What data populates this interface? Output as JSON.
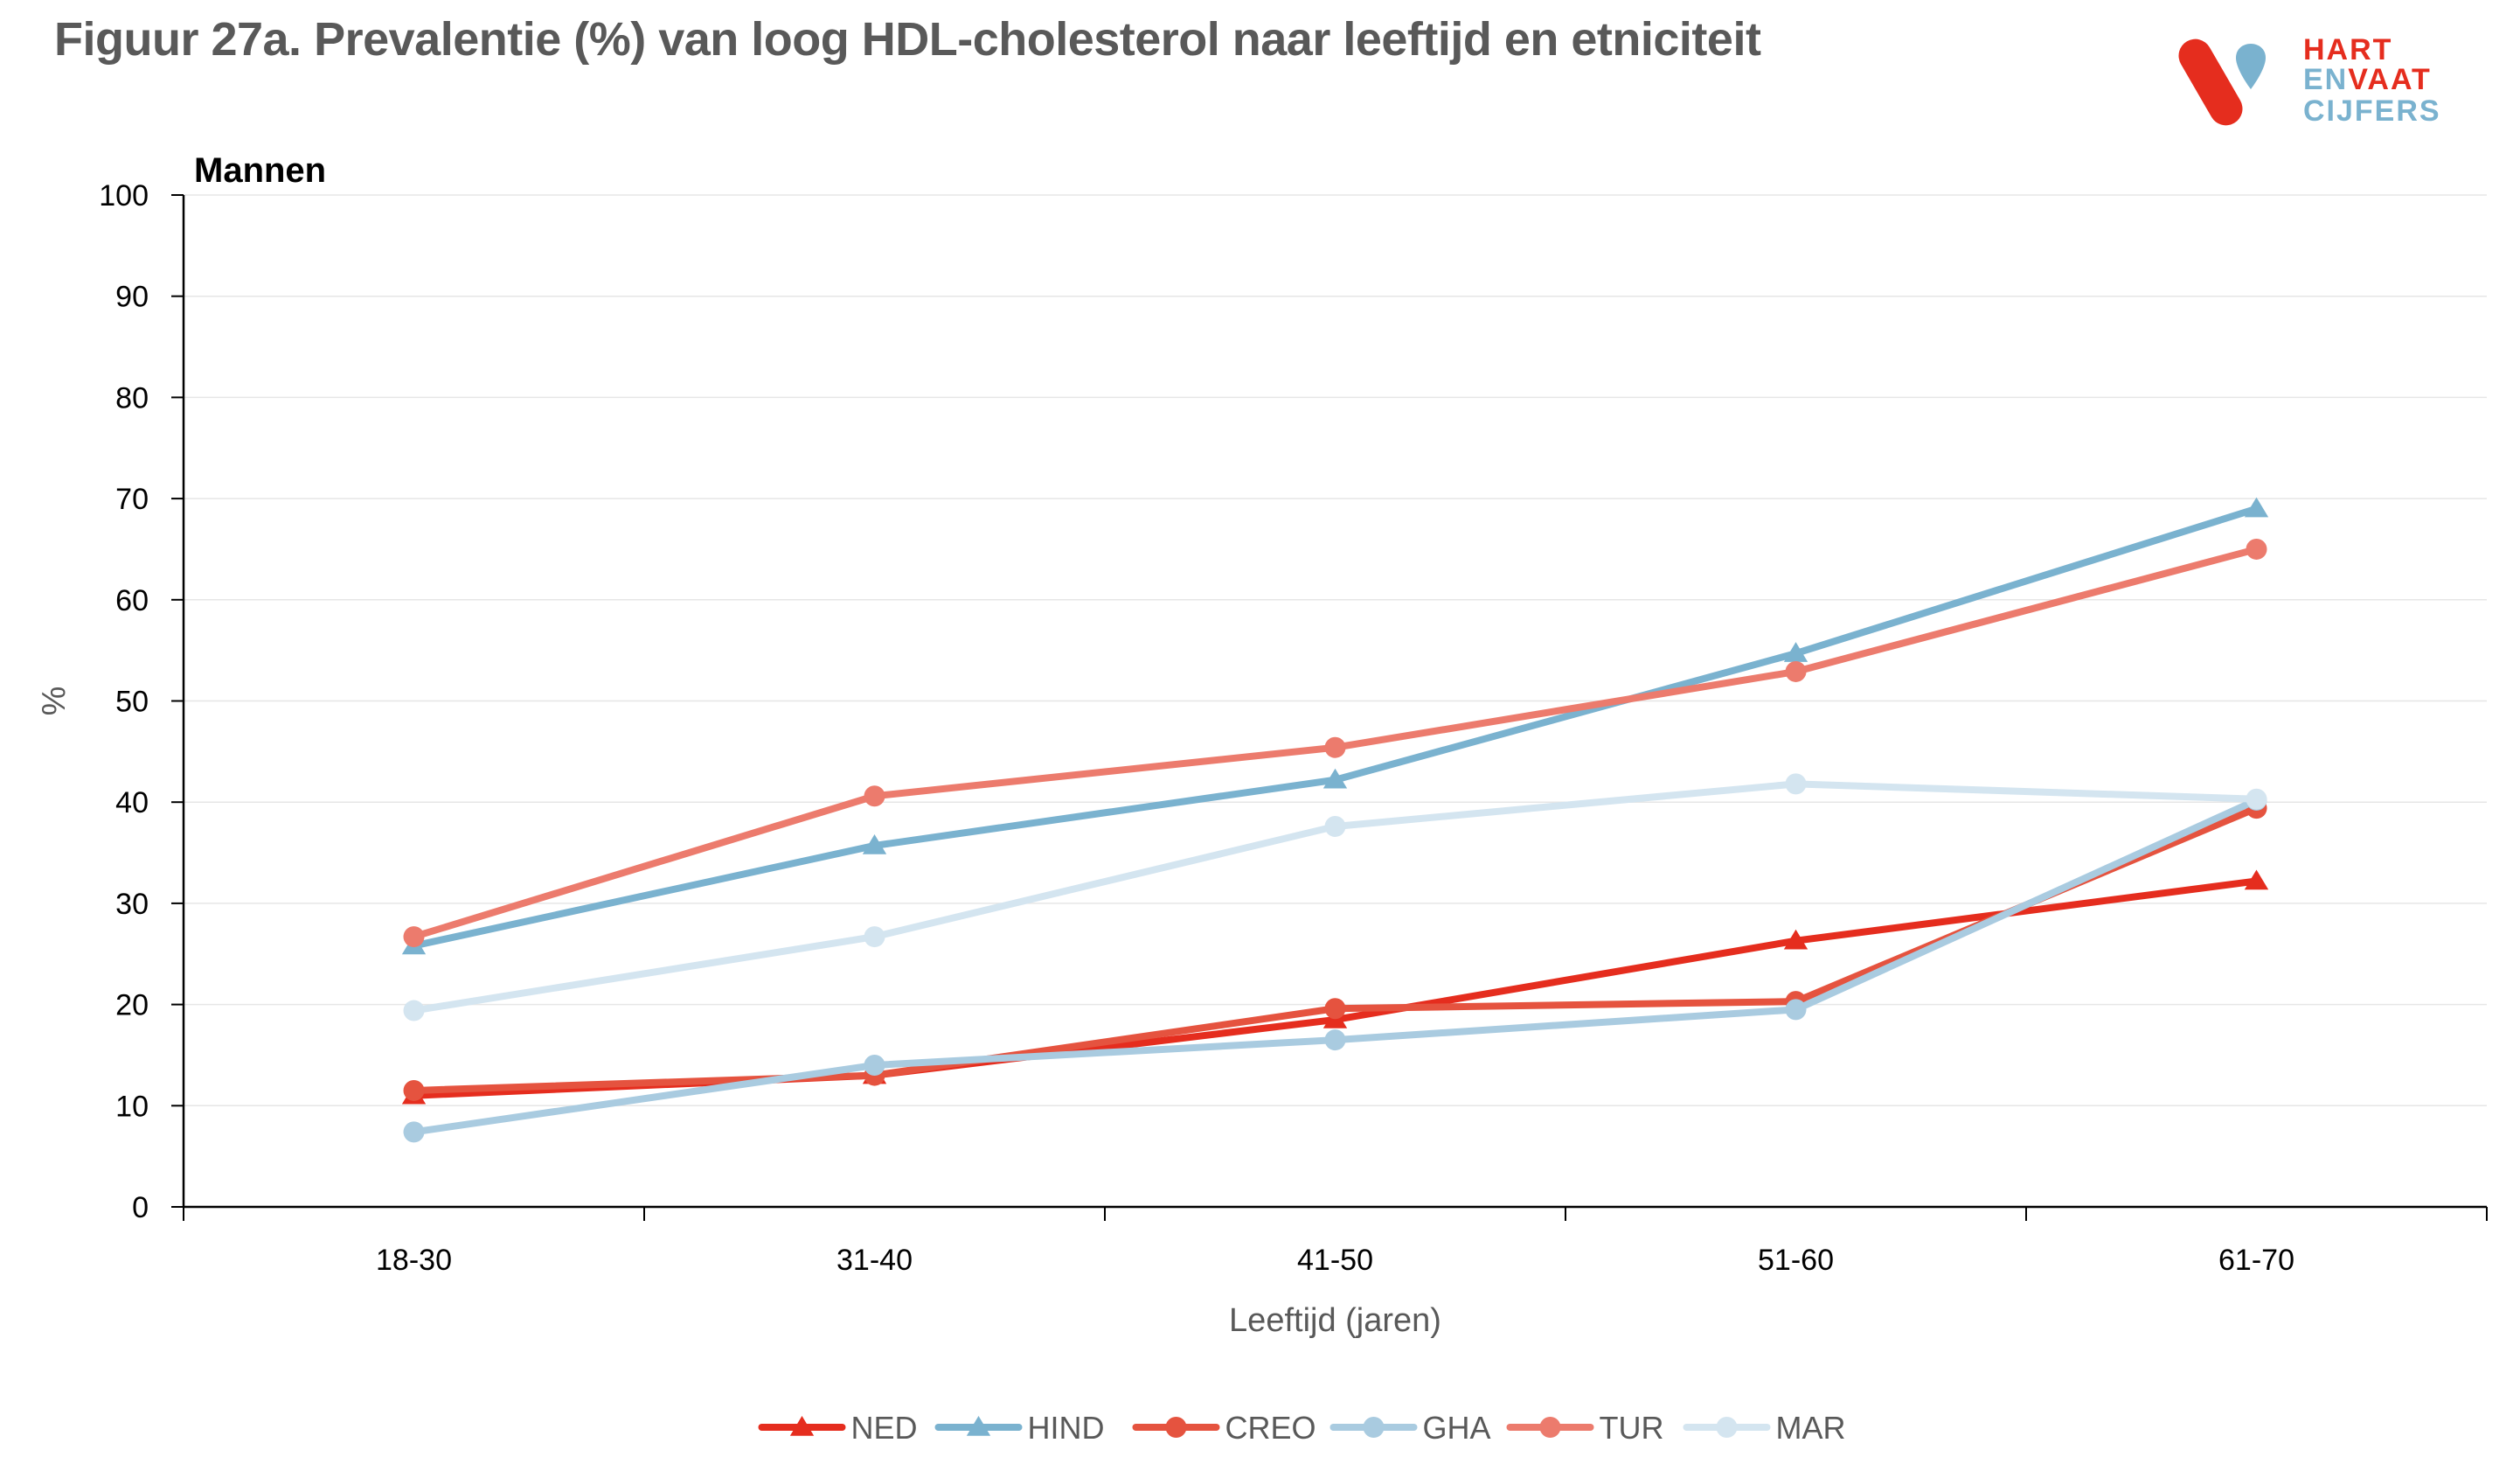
{
  "title": "Figuur 27a. Prevalentie (%) van  loog HDL-cholesterol naar leeftijd en etniciteit",
  "logo": {
    "line1": "HART",
    "line2_a": "EN",
    "line2_b": "VAAT",
    "line3": "CIJFERS",
    "colors": {
      "red": "#e52d1e",
      "blue": "#7ab2cf"
    }
  },
  "chart_data": {
    "type": "line",
    "panel_label": "Mannen",
    "title": "",
    "xlabel": "Leeftijd (jaren)",
    "ylabel": "%",
    "categories": [
      "18-30",
      "31-40",
      "41-50",
      "51-60",
      "61-70"
    ],
    "ylim": [
      0,
      100
    ],
    "yticks": [
      0,
      10,
      20,
      30,
      40,
      50,
      60,
      70,
      80,
      90,
      100
    ],
    "grid": true,
    "legend_position": "bottom",
    "series": [
      {
        "name": "NED",
        "color": "#e52d1e",
        "marker": "triangle",
        "values": [
          11,
          13,
          18.5,
          26.3,
          32.2
        ]
      },
      {
        "name": "HIND",
        "color": "#7ab2cf",
        "marker": "triangle",
        "values": [
          25.8,
          35.7,
          42.2,
          54.7,
          69
        ]
      },
      {
        "name": "CREO",
        "color": "#e5533f",
        "marker": "circle",
        "values": [
          11.5,
          13,
          19.6,
          20.3,
          39.4
        ]
      },
      {
        "name": "GHA",
        "color": "#a9cbe0",
        "marker": "circle",
        "values": [
          7.4,
          14,
          16.5,
          19.5,
          40.2
        ]
      },
      {
        "name": "TUR",
        "color": "#ec7b6d",
        "marker": "circle",
        "values": [
          26.7,
          40.6,
          45.4,
          52.9,
          65
        ]
      },
      {
        "name": "MAR",
        "color": "#d4e5f0",
        "marker": "circle",
        "values": [
          19.4,
          26.7,
          37.6,
          41.8,
          40.3
        ]
      }
    ]
  }
}
